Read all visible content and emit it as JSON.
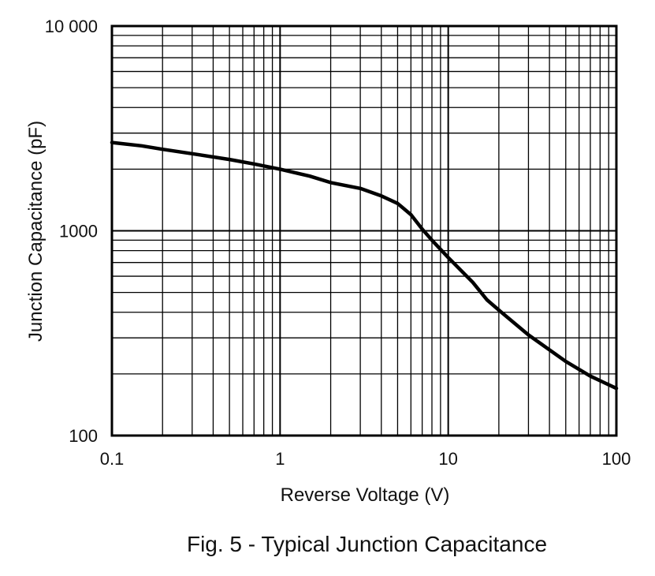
{
  "chart_data": {
    "type": "line",
    "title": "",
    "caption": "Fig. 5 - Typical Junction Capacitance",
    "xlabel": "Reverse Voltage (V)",
    "ylabel": "Junction Capacitance (pF)",
    "x_scale": "log",
    "y_scale": "log",
    "xlim": [
      0.1,
      100
    ],
    "ylim": [
      100,
      10000
    ],
    "x_ticks": [
      {
        "value": 0.1,
        "label": "0.1"
      },
      {
        "value": 1,
        "label": "1"
      },
      {
        "value": 10,
        "label": "10"
      },
      {
        "value": 100,
        "label": "100"
      }
    ],
    "y_ticks": [
      {
        "value": 100,
        "label": "100"
      },
      {
        "value": 1000,
        "label": "1000"
      },
      {
        "value": 10000,
        "label": "10 000"
      }
    ],
    "grid": true,
    "series": [
      {
        "x": [
          0.1,
          0.15,
          0.2,
          0.3,
          0.5,
          0.7,
          1,
          1.5,
          2,
          3,
          4,
          5,
          6,
          7,
          8,
          10,
          14,
          17,
          20,
          30,
          50,
          70,
          100
        ],
        "y": [
          2700,
          2600,
          2500,
          2380,
          2230,
          2120,
          2000,
          1850,
          1720,
          1610,
          1480,
          1360,
          1200,
          1020,
          900,
          740,
          560,
          460,
          410,
          310,
          230,
          195,
          170
        ]
      }
    ],
    "colors": {
      "line": "#000000",
      "grid": "#000000",
      "text": "#111111"
    }
  }
}
